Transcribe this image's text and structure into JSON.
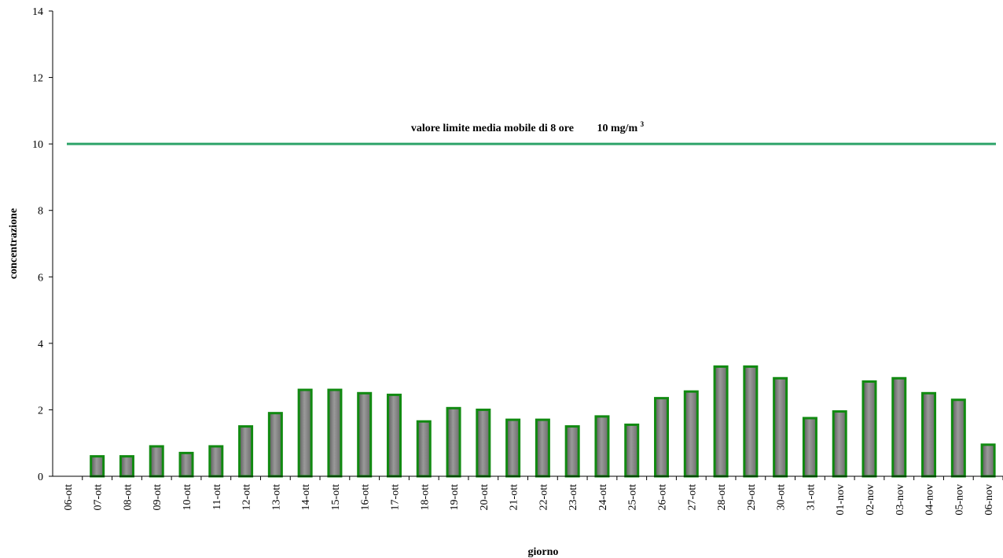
{
  "chart_data": {
    "type": "bar",
    "title": "",
    "xlabel": "giorno",
    "ylabel": "concentrazione",
    "ylim": [
      0,
      14
    ],
    "yticks": [
      0,
      2,
      4,
      6,
      8,
      10,
      12,
      14
    ],
    "categories": [
      "06-ott",
      "07-ott",
      "08-ott",
      "09-ott",
      "10-ott",
      "11-ott",
      "12-ott",
      "13-ott",
      "14-ott",
      "15-ott",
      "16-ott",
      "17-ott",
      "18-ott",
      "19-ott",
      "20-ott",
      "21-ott",
      "22-ott",
      "23-ott",
      "24-ott",
      "25-ott",
      "26-ott",
      "27-ott",
      "28-ott",
      "29-ott",
      "30-ott",
      "31-ott",
      "01-nov",
      "02-nov",
      "03-nov",
      "04-nov",
      "05-nov",
      "06-nov"
    ],
    "values": [
      0,
      0.6,
      0.6,
      0.9,
      0.7,
      0.9,
      1.5,
      1.9,
      2.6,
      2.6,
      2.5,
      2.45,
      1.65,
      2.05,
      2.0,
      1.7,
      1.7,
      1.5,
      1.8,
      1.55,
      2.35,
      2.55,
      3.3,
      3.3,
      2.95,
      1.75,
      1.95,
      2.85,
      2.95,
      2.5,
      2.3,
      0.95
    ],
    "bar_fill": "#7f7f7f",
    "bar_stroke": "#118a11",
    "grid": false,
    "legend": "none",
    "reference_line": {
      "value": 10,
      "color": "#2ea46a",
      "label_main": "valore limite media mobile di 8 ore",
      "label_value": "10 mg/m",
      "label_sup": "3"
    }
  }
}
